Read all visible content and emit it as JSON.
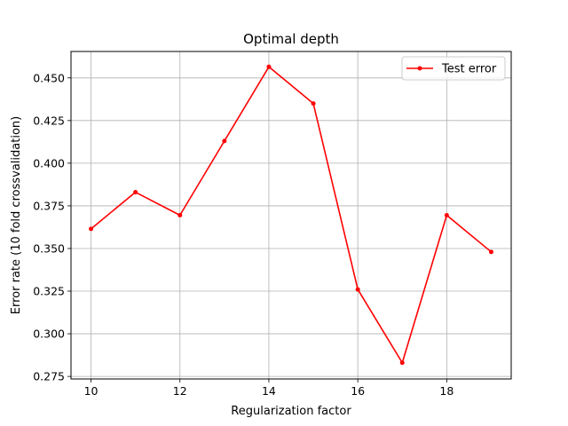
{
  "chart_data": {
    "type": "line",
    "title": "Optimal depth",
    "xlabel": "Regularization factor",
    "ylabel": "Error rate (10 fold crossvalidation)",
    "xlim": [
      9.55,
      19.45
    ],
    "ylim": [
      0.2735,
      0.4655
    ],
    "xticks": [
      10,
      12,
      14,
      16,
      18
    ],
    "yticks": [
      0.275,
      0.3,
      0.325,
      0.35,
      0.375,
      0.4,
      0.425,
      0.45
    ],
    "xtick_labels": [
      "10",
      "12",
      "14",
      "16",
      "18"
    ],
    "ytick_labels": [
      "0.275",
      "0.300",
      "0.325",
      "0.350",
      "0.375",
      "0.400",
      "0.425",
      "0.450"
    ],
    "grid": true,
    "legend_position": "top-right",
    "series": [
      {
        "name": "Test error",
        "color": "#ff0000",
        "marker": "point",
        "x": [
          10,
          11,
          12,
          13,
          14,
          15,
          16,
          17,
          18,
          19
        ],
        "y": [
          0.3615,
          0.383,
          0.3695,
          0.413,
          0.4565,
          0.435,
          0.326,
          0.283,
          0.3695,
          0.348
        ]
      }
    ]
  }
}
